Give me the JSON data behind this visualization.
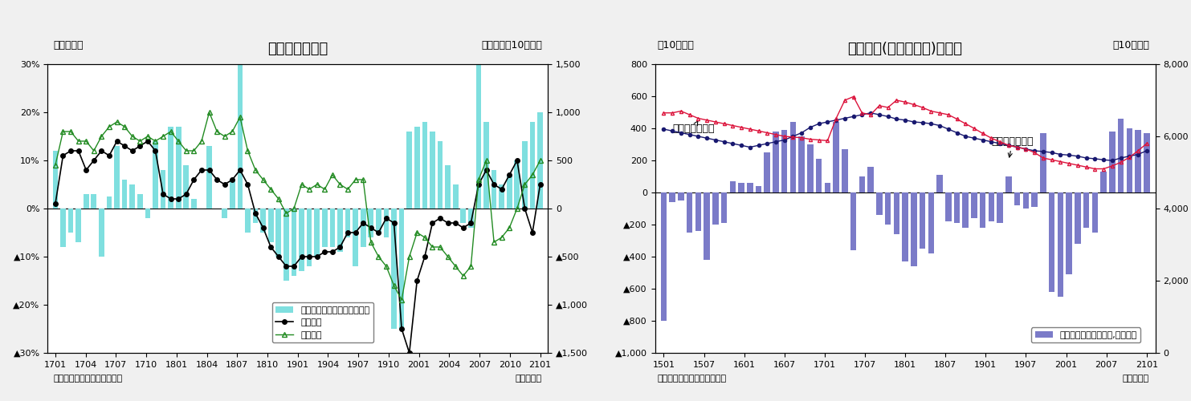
{
  "chart1": {
    "title": "貿易収支の推移",
    "ylabel_left": "（前年比）",
    "ylabel_right": "（前年差、10億円）",
    "xlabel": "（年・月）",
    "source": "（資料）財務省「貿易統計」",
    "ylim_left": [
      -0.3,
      0.3
    ],
    "ylim_right": [
      -1500,
      1500
    ],
    "yticks_left": [
      -0.3,
      -0.2,
      -0.1,
      0.0,
      0.1,
      0.2,
      0.3
    ],
    "yticks_left_labels": [
      "▲30%",
      "▲20%",
      "▲10%",
      "0%",
      "10%",
      "20%",
      "30%"
    ],
    "yticks_right": [
      -1500,
      -1000,
      -500,
      0,
      500,
      1000,
      1500
    ],
    "yticks_right_labels": [
      "▲1,500",
      "▲1,000",
      "▲500",
      "0",
      "500",
      "1,000",
      "1,500"
    ],
    "xticks": [
      "1701",
      "1704",
      "1707",
      "1710",
      "1801",
      "1804",
      "1807",
      "1810",
      "1901",
      "1904",
      "1907",
      "1910",
      "2001",
      "2004",
      "2007",
      "2010",
      "2101"
    ],
    "bar_color": "#7FDFDF",
    "export_color": "#000000",
    "import_color": "#228B22",
    "bar_values": [
      0.12,
      -0.08,
      -0.05,
      -0.07,
      0.03,
      0.03,
      -0.1,
      0.025,
      0.13,
      0.06,
      0.05,
      0.03,
      -0.02,
      0.14,
      0.08,
      0.17,
      0.17,
      0.09,
      0.02,
      0.0,
      0.13,
      0.0,
      -0.02,
      0.06,
      0.5,
      -0.05,
      -0.03,
      -0.05,
      -0.07,
      -0.1,
      -0.15,
      -0.14,
      -0.13,
      -0.12,
      -0.1,
      -0.08,
      -0.08,
      -0.09,
      -0.06,
      -0.12,
      -0.08,
      -0.06,
      -0.05,
      -0.06,
      -0.25,
      -0.25,
      0.16,
      0.17,
      0.18,
      0.16,
      0.14,
      0.09,
      0.05,
      -0.03,
      -0.04,
      0.3,
      0.18,
      0.08,
      0.05,
      0.07,
      0.1,
      0.14,
      0.18,
      0.2
    ],
    "export_values": [
      0.01,
      0.11,
      0.12,
      0.12,
      0.08,
      0.1,
      0.12,
      0.11,
      0.14,
      0.13,
      0.12,
      0.13,
      0.14,
      0.12,
      0.03,
      0.02,
      0.02,
      0.03,
      0.06,
      0.08,
      0.08,
      0.06,
      0.05,
      0.06,
      0.08,
      0.05,
      -0.01,
      -0.04,
      -0.08,
      -0.1,
      -0.12,
      -0.12,
      -0.1,
      -0.1,
      -0.1,
      -0.09,
      -0.09,
      -0.08,
      -0.05,
      -0.05,
      -0.03,
      -0.04,
      -0.05,
      -0.02,
      -0.03,
      -0.25,
      -0.3,
      -0.15,
      -0.1,
      -0.03,
      -0.02,
      -0.03,
      -0.03,
      -0.04,
      -0.03,
      0.05,
      0.08,
      0.05,
      0.04,
      0.07,
      0.1,
      0.0,
      -0.05,
      0.05
    ],
    "import_values": [
      0.09,
      0.16,
      0.16,
      0.14,
      0.14,
      0.12,
      0.15,
      0.17,
      0.18,
      0.17,
      0.15,
      0.14,
      0.15,
      0.14,
      0.15,
      0.16,
      0.14,
      0.12,
      0.12,
      0.14,
      0.2,
      0.16,
      0.15,
      0.16,
      0.19,
      0.12,
      0.08,
      0.06,
      0.04,
      0.02,
      -0.01,
      0.0,
      0.05,
      0.04,
      0.05,
      0.04,
      0.07,
      0.05,
      0.04,
      0.06,
      0.06,
      -0.07,
      -0.1,
      -0.12,
      -0.16,
      -0.19,
      -0.1,
      -0.05,
      -0.06,
      -0.08,
      -0.08,
      -0.1,
      -0.12,
      -0.14,
      -0.12,
      0.06,
      0.1,
      -0.07,
      -0.06,
      -0.04,
      0.0,
      0.05,
      0.07,
      0.1
    ],
    "legend_items": [
      "貿易収支・前年差（右目盛）",
      "輸出金額",
      "輸入金額"
    ]
  },
  "chart2": {
    "title": "貿易収支(季節調整値)の推移",
    "ylabel_left": "（10億円）",
    "ylabel_right": "（10億円）",
    "xlabel": "（年・月）",
    "source": "（資料）財務省「貿易統計」",
    "ylim_left": [
      -1000,
      800
    ],
    "ylim_right": [
      0,
      8000
    ],
    "yticks_left": [
      -1000,
      -800,
      -600,
      -400,
      -200,
      0,
      200,
      400,
      600,
      800
    ],
    "yticks_left_labels": [
      "▲1,000",
      "▲800",
      "▲600",
      "▲400",
      "▲200",
      "0",
      "200",
      "400",
      "600",
      "800"
    ],
    "yticks_right": [
      0,
      2000,
      4000,
      6000,
      8000
    ],
    "yticks_right_labels": [
      "0",
      "2,000",
      "4,000",
      "6,000",
      "8,000"
    ],
    "xticks": [
      "1501",
      "1507",
      "1601",
      "1607",
      "1701",
      "1707",
      "1801",
      "1807",
      "1901",
      "1907",
      "2001",
      "2007",
      "2101"
    ],
    "bar_color": "#7B7BC8",
    "export_color": "#191970",
    "import_color": "#DC143C",
    "bar_values": [
      -800,
      -60,
      -50,
      -250,
      -240,
      -420,
      -200,
      -190,
      70,
      60,
      60,
      40,
      250,
      380,
      390,
      440,
      350,
      300,
      210,
      60,
      440,
      270,
      -360,
      100,
      160,
      -140,
      -200,
      -260,
      -430,
      -460,
      -350,
      -380,
      110,
      -180,
      -190,
      -220,
      -160,
      -220,
      -180,
      -190,
      100,
      -80,
      -100,
      -90,
      370,
      -620,
      -650,
      -510,
      -320,
      -220,
      -250,
      130,
      380,
      460,
      400,
      390,
      370
    ],
    "export_values": [
      620,
      615,
      610,
      605,
      600,
      595,
      590,
      585,
      580,
      575,
      570,
      575,
      580,
      585,
      590,
      600,
      610,
      625,
      635,
      640,
      645,
      650,
      655,
      660,
      665,
      660,
      655,
      648,
      645,
      640,
      638,
      635,
      630,
      620,
      610,
      600,
      595,
      590,
      585,
      580,
      575,
      570,
      565,
      560,
      558,
      555,
      550,
      548,
      545,
      540,
      538,
      535,
      533,
      540,
      545,
      550,
      560
    ],
    "import_values": [
      665,
      665,
      670,
      660,
      650,
      645,
      640,
      635,
      630,
      625,
      620,
      615,
      610,
      605,
      600,
      598,
      596,
      592,
      590,
      588,
      650,
      700,
      710,
      665,
      660,
      685,
      680,
      700,
      695,
      688,
      680,
      670,
      665,
      660,
      648,
      635,
      622,
      608,
      595,
      585,
      575,
      570,
      565,
      555,
      540,
      535,
      530,
      525,
      520,
      515,
      510,
      510,
      518,
      528,
      542,
      560,
      580
    ],
    "annotation_import": "輸入（右目盤）",
    "annotation_export": "輸出（右目盤）",
    "legend_item": "貿易収支（季節調整値,左目盛）"
  },
  "background_color": "#FFFFFF",
  "outer_bg": "#F0F0F0",
  "font_size_title": 13,
  "font_size_label": 9,
  "font_size_tick": 8,
  "font_size_legend": 8,
  "font_size_source": 8
}
